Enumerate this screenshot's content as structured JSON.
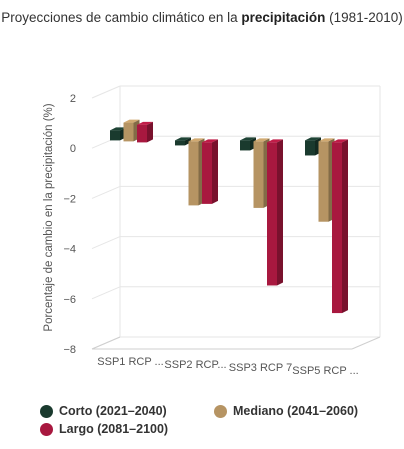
{
  "chart_data": {
    "type": "bar",
    "title_prefix": "Proyecciones de cambio climático en la ",
    "title_bold": "precipitación",
    "title_suffix": " (1981-2010)",
    "ylabel": "Porcentaje de cambio en la precipitación (%)",
    "xlabel": "",
    "ylim": [
      -8,
      2
    ],
    "yticks": [
      2,
      0,
      -2,
      -4,
      -6,
      -8
    ],
    "categories": [
      "SSP1 RCP ...",
      "SSP2 RCP...",
      "SSP3 RCP 7",
      "SSP5 RCP ..."
    ],
    "series": [
      {
        "name": "Corto (2021–2040)",
        "color": "#1a3a2e",
        "values": [
          0.4,
          -0.2,
          -0.4,
          -0.6
        ]
      },
      {
        "name": "Mediano (2041–2060)",
        "color": "#b69463",
        "values": [
          0.75,
          -2.55,
          -2.65,
          -3.2
        ]
      },
      {
        "name": "Largo (2081–2100)",
        "color": "#a8183f",
        "values": [
          0.7,
          -2.45,
          -5.7,
          -6.8
        ]
      }
    ],
    "grid": true,
    "legend": "bottom"
  }
}
